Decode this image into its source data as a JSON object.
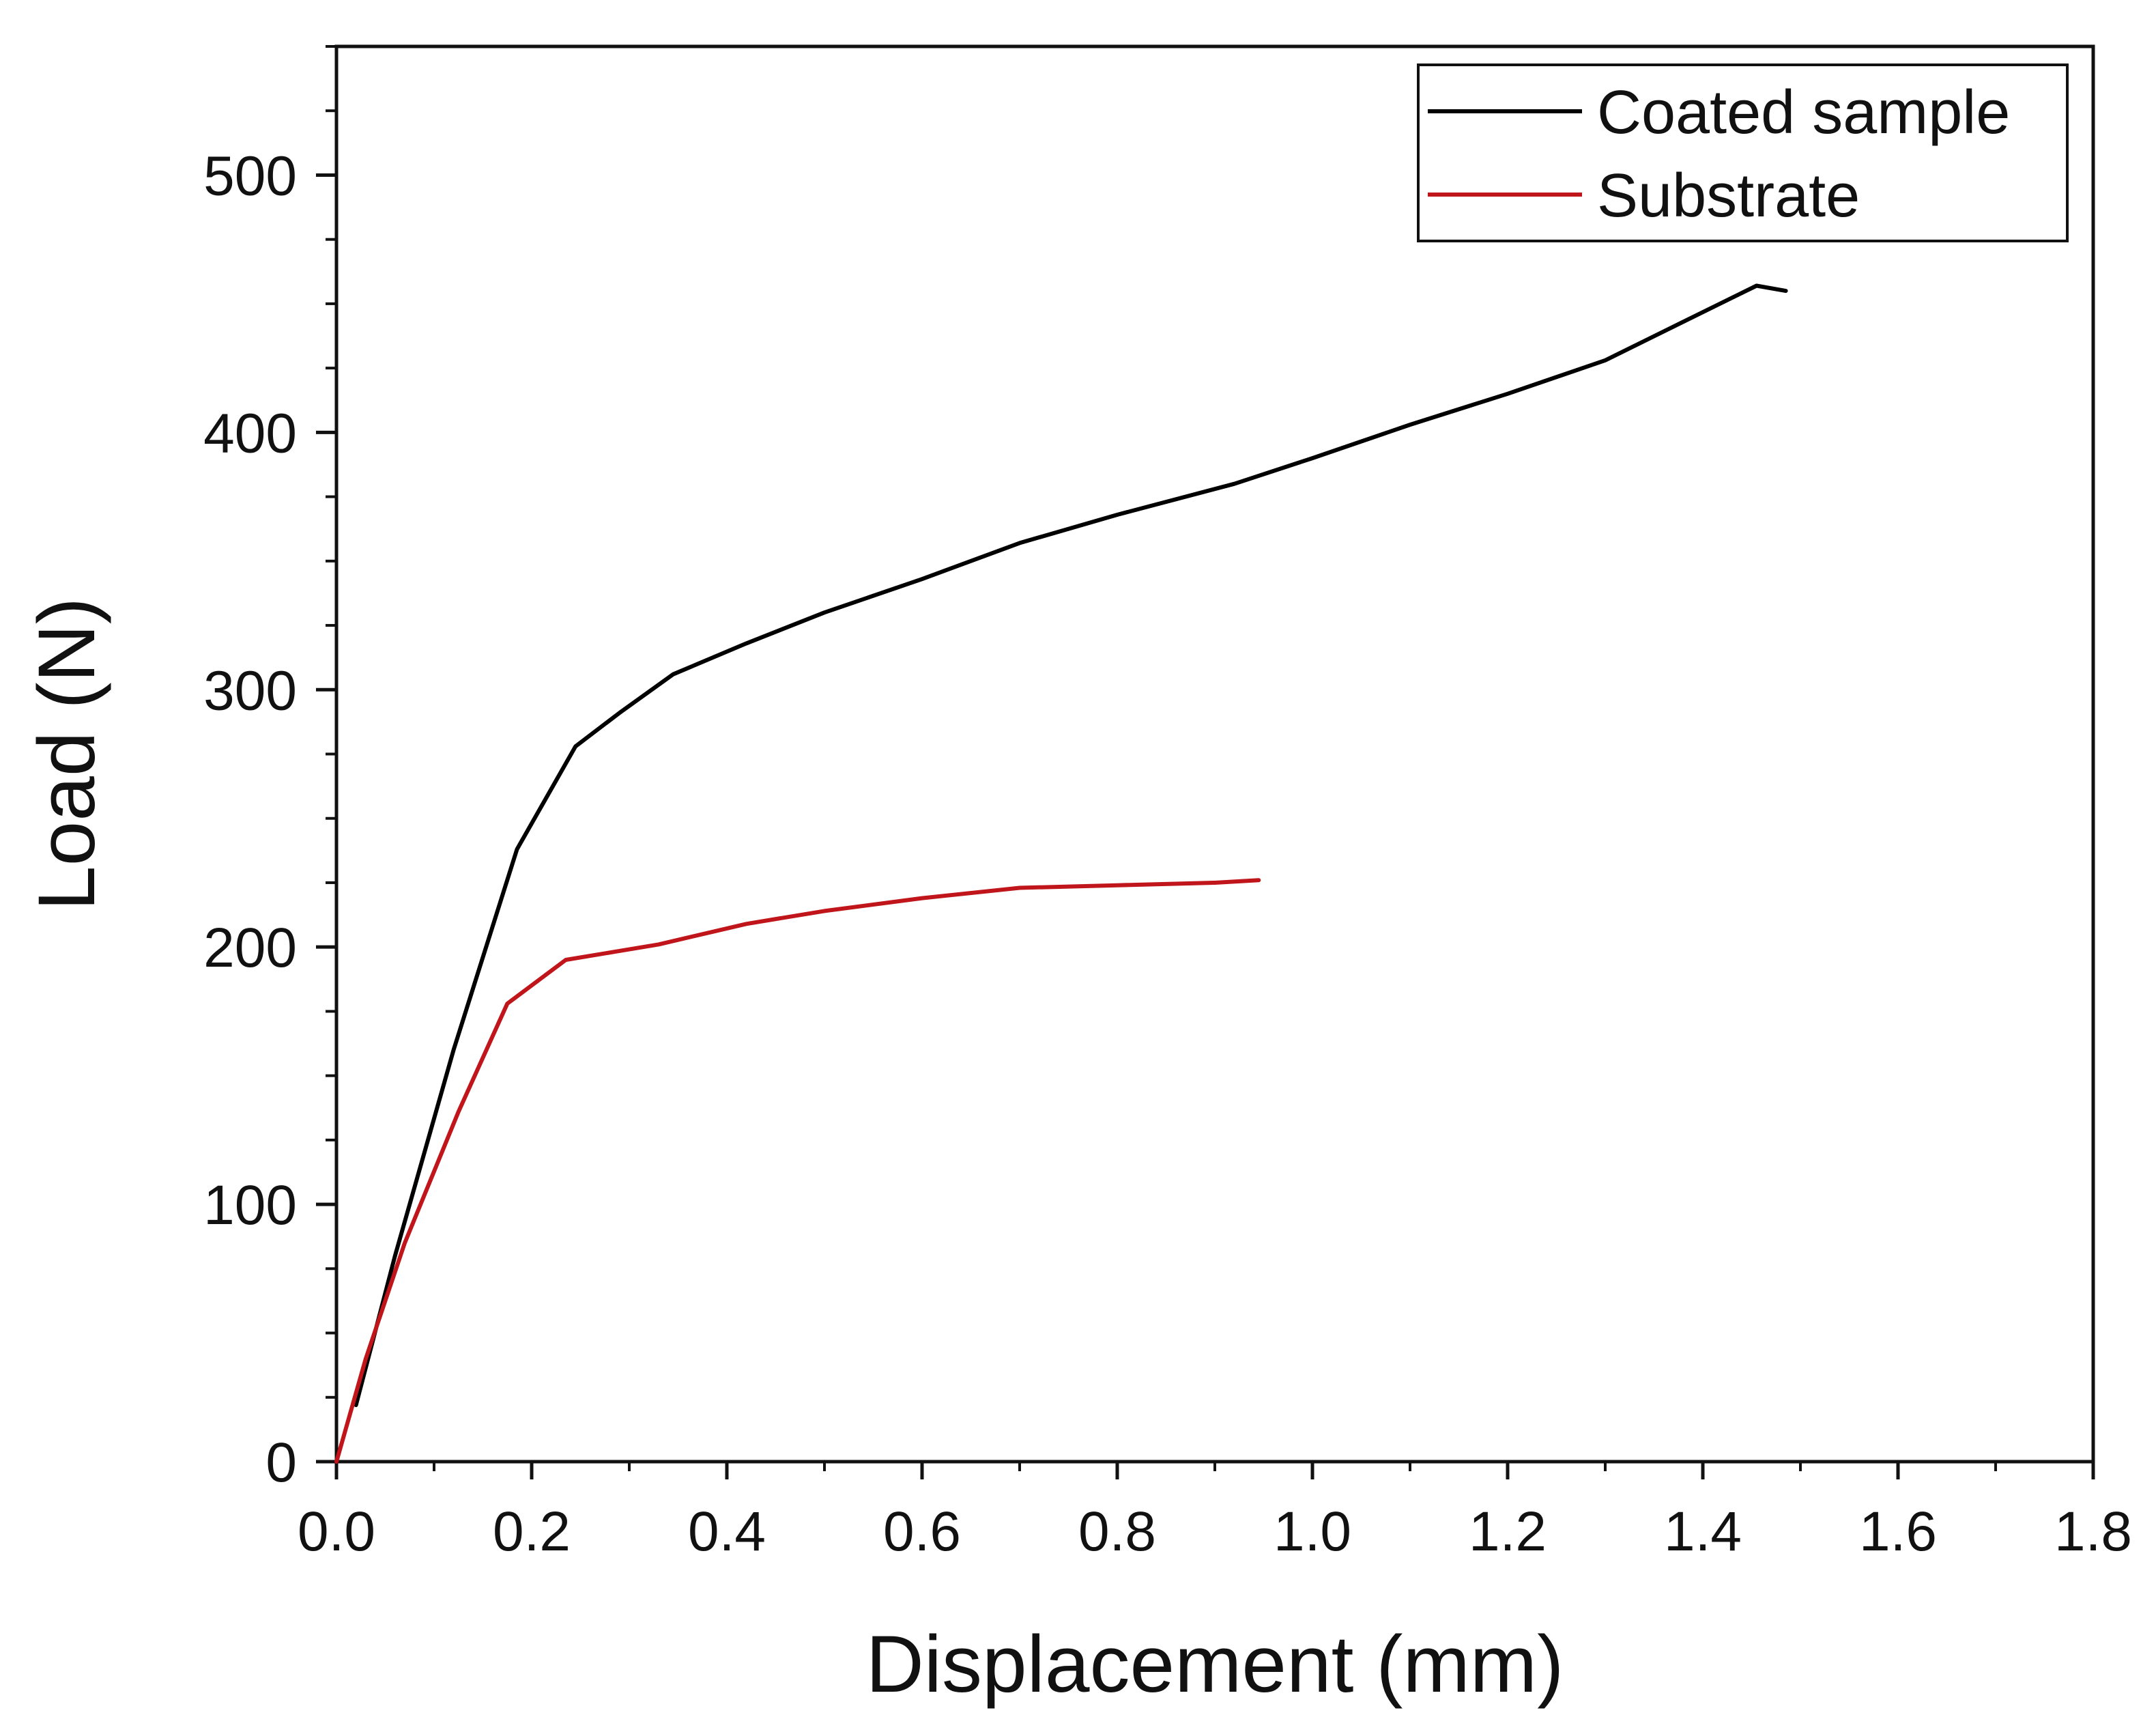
{
  "chart_data": {
    "type": "line",
    "title": "",
    "xlabel": "Displacement (mm)",
    "ylabel": "Load (N)",
    "xlim": [
      0,
      1.8
    ],
    "ylim": [
      0,
      550
    ],
    "x_ticks": [
      0.0,
      0.2,
      0.4,
      0.6,
      0.8,
      1.0,
      1.2,
      1.4,
      1.6,
      1.8
    ],
    "x_tick_labels": [
      "0.0",
      "0.2",
      "0.4",
      "0.6",
      "0.8",
      "1.0",
      "1.2",
      "1.4",
      "1.6",
      "1.8"
    ],
    "y_ticks": [
      0,
      100,
      200,
      300,
      400,
      500
    ],
    "y_tick_labels": [
      "0",
      "100",
      "200",
      "300",
      "400",
      "500"
    ],
    "y_minor_step": 25,
    "grid": false,
    "legend_position": "top-right",
    "series": [
      {
        "name": "Coated sample",
        "color": "#000000",
        "points": [
          [
            0.02,
            22
          ],
          [
            0.06,
            80
          ],
          [
            0.12,
            160
          ],
          [
            0.185,
            238
          ],
          [
            0.245,
            278
          ],
          [
            0.29,
            291
          ],
          [
            0.345,
            306
          ],
          [
            0.42,
            318
          ],
          [
            0.5,
            330
          ],
          [
            0.6,
            343
          ],
          [
            0.7,
            357
          ],
          [
            0.8,
            368
          ],
          [
            0.92,
            380
          ],
          [
            1.0,
            390
          ],
          [
            1.1,
            403
          ],
          [
            1.2,
            415
          ],
          [
            1.3,
            428
          ],
          [
            1.38,
            443
          ],
          [
            1.455,
            457
          ],
          [
            1.485,
            455
          ]
        ]
      },
      {
        "name": "Substrate",
        "color": "#c0151a",
        "points": [
          [
            0.0,
            0
          ],
          [
            0.03,
            40
          ],
          [
            0.07,
            85
          ],
          [
            0.125,
            136
          ],
          [
            0.175,
            178
          ],
          [
            0.235,
            195
          ],
          [
            0.33,
            201
          ],
          [
            0.42,
            209
          ],
          [
            0.5,
            214
          ],
          [
            0.6,
            219
          ],
          [
            0.7,
            223
          ],
          [
            0.8,
            224
          ],
          [
            0.9,
            225
          ],
          [
            0.945,
            226
          ]
        ]
      }
    ]
  }
}
